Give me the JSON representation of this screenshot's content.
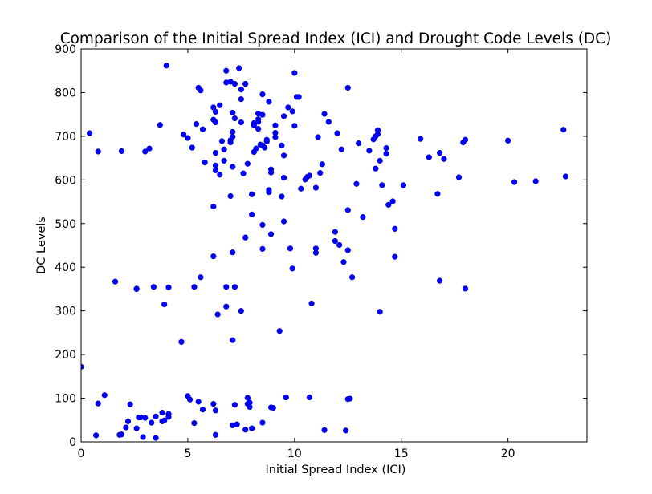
{
  "chart_data": {
    "type": "scatter",
    "title": "Comparison of the Initial Spread Index (ICI) and Drought Code Levels (DC)",
    "xlabel": "Initial Spread Index (ICI)",
    "ylabel": "DC Levels",
    "xlim": [
      0,
      23.7
    ],
    "ylim": [
      0,
      900
    ],
    "xticks": [
      0,
      5,
      10,
      15,
      20
    ],
    "yticks": [
      0,
      100,
      200,
      300,
      400,
      500,
      600,
      700,
      800,
      900
    ],
    "grid": false,
    "marker_color": "#0000ff",
    "points": [
      [
        0.0,
        172
      ],
      [
        0.4,
        707
      ],
      [
        0.7,
        15
      ],
      [
        0.8,
        88
      ],
      [
        0.8,
        665
      ],
      [
        1.1,
        107
      ],
      [
        1.6,
        367
      ],
      [
        1.8,
        16
      ],
      [
        1.9,
        17
      ],
      [
        1.9,
        666
      ],
      [
        2.1,
        33
      ],
      [
        2.2,
        47
      ],
      [
        2.3,
        86
      ],
      [
        2.6,
        31
      ],
      [
        2.6,
        351
      ],
      [
        2.6,
        350
      ],
      [
        2.7,
        56
      ],
      [
        2.8,
        56
      ],
      [
        2.9,
        11
      ],
      [
        3.0,
        55
      ],
      [
        3.0,
        665
      ],
      [
        3.2,
        672
      ],
      [
        3.3,
        44
      ],
      [
        3.4,
        355
      ],
      [
        3.5,
        9
      ],
      [
        3.5,
        58
      ],
      [
        3.7,
        726
      ],
      [
        3.8,
        47
      ],
      [
        3.8,
        67
      ],
      [
        3.9,
        315
      ],
      [
        3.9,
        49
      ],
      [
        4.0,
        862
      ],
      [
        4.1,
        64
      ],
      [
        4.1,
        57
      ],
      [
        4.1,
        354
      ],
      [
        4.7,
        229
      ],
      [
        4.8,
        704
      ],
      [
        5.0,
        105
      ],
      [
        5.0,
        696
      ],
      [
        5.1,
        97
      ],
      [
        5.2,
        674
      ],
      [
        5.3,
        43
      ],
      [
        5.3,
        355
      ],
      [
        5.4,
        728
      ],
      [
        5.5,
        92
      ],
      [
        5.5,
        811
      ],
      [
        5.6,
        805
      ],
      [
        5.6,
        377
      ],
      [
        5.7,
        716
      ],
      [
        5.7,
        74
      ],
      [
        5.8,
        640
      ],
      [
        6.2,
        87
      ],
      [
        6.2,
        425
      ],
      [
        6.2,
        539
      ],
      [
        6.2,
        766
      ],
      [
        6.2,
        738
      ],
      [
        6.3,
        16
      ],
      [
        6.3,
        72
      ],
      [
        6.3,
        662
      ],
      [
        6.3,
        633
      ],
      [
        6.3,
        622
      ],
      [
        6.3,
        756
      ],
      [
        6.3,
        732
      ],
      [
        6.4,
        292
      ],
      [
        6.5,
        771
      ],
      [
        6.5,
        612
      ],
      [
        6.6,
        689
      ],
      [
        6.7,
        670
      ],
      [
        6.7,
        644
      ],
      [
        6.8,
        310
      ],
      [
        6.8,
        355
      ],
      [
        6.8,
        823
      ],
      [
        6.8,
        850
      ],
      [
        7.0,
        691
      ],
      [
        7.0,
        686
      ],
      [
        7.0,
        563
      ],
      [
        7.0,
        825
      ],
      [
        7.1,
        710
      ],
      [
        7.1,
        699
      ],
      [
        7.1,
        754
      ],
      [
        7.1,
        630
      ],
      [
        7.1,
        434
      ],
      [
        7.1,
        233
      ],
      [
        7.1,
        38
      ],
      [
        7.2,
        85
      ],
      [
        7.2,
        355
      ],
      [
        7.2,
        741
      ],
      [
        7.2,
        820
      ],
      [
        7.3,
        40
      ],
      [
        7.3,
        40
      ],
      [
        7.4,
        856
      ],
      [
        7.5,
        807
      ],
      [
        7.5,
        785
      ],
      [
        7.5,
        732
      ],
      [
        7.5,
        300
      ],
      [
        7.6,
        615
      ],
      [
        7.7,
        28
      ],
      [
        7.7,
        820
      ],
      [
        7.7,
        468
      ],
      [
        7.8,
        637
      ],
      [
        7.8,
        87
      ],
      [
        7.8,
        101
      ],
      [
        7.9,
        90
      ],
      [
        7.9,
        80
      ],
      [
        8.0,
        567
      ],
      [
        8.0,
        521
      ],
      [
        8.0,
        31
      ],
      [
        8.1,
        730
      ],
      [
        8.1,
        725
      ],
      [
        8.1,
        664
      ],
      [
        8.2,
        672
      ],
      [
        8.3,
        733
      ],
      [
        8.3,
        739
      ],
      [
        8.3,
        752
      ],
      [
        8.3,
        717
      ],
      [
        8.4,
        681
      ],
      [
        8.5,
        796
      ],
      [
        8.5,
        679
      ],
      [
        8.5,
        749
      ],
      [
        8.5,
        497
      ],
      [
        8.5,
        44
      ],
      [
        8.5,
        442
      ],
      [
        8.6,
        674
      ],
      [
        8.7,
        688
      ],
      [
        8.7,
        692
      ],
      [
        8.8,
        779
      ],
      [
        8.8,
        577
      ],
      [
        8.8,
        572
      ],
      [
        8.9,
        624
      ],
      [
        8.9,
        617
      ],
      [
        8.9,
        476
      ],
      [
        8.9,
        79
      ],
      [
        9.0,
        78
      ],
      [
        9.1,
        708
      ],
      [
        9.1,
        725
      ],
      [
        9.1,
        698
      ],
      [
        9.3,
        254
      ],
      [
        9.4,
        679
      ],
      [
        9.4,
        562
      ],
      [
        9.5,
        605
      ],
      [
        9.5,
        656
      ],
      [
        9.5,
        746
      ],
      [
        9.5,
        505
      ],
      [
        9.6,
        102
      ],
      [
        9.6,
        102
      ],
      [
        9.7,
        766
      ],
      [
        9.8,
        443
      ],
      [
        9.9,
        397
      ],
      [
        9.9,
        757
      ],
      [
        10.0,
        845
      ],
      [
        10.0,
        724
      ],
      [
        10.1,
        790
      ],
      [
        10.2,
        790
      ],
      [
        10.3,
        580
      ],
      [
        10.5,
        601
      ],
      [
        10.6,
        607
      ],
      [
        10.7,
        610
      ],
      [
        10.7,
        102
      ],
      [
        10.8,
        317
      ],
      [
        11.0,
        582
      ],
      [
        11.0,
        443
      ],
      [
        11.0,
        433
      ],
      [
        11.1,
        698
      ],
      [
        11.2,
        616
      ],
      [
        11.3,
        636
      ],
      [
        11.4,
        751
      ],
      [
        11.4,
        27
      ],
      [
        11.6,
        733
      ],
      [
        11.9,
        460
      ],
      [
        11.9,
        481
      ],
      [
        12.0,
        707
      ],
      [
        12.1,
        451
      ],
      [
        12.2,
        670
      ],
      [
        12.3,
        412
      ],
      [
        12.4,
        26
      ],
      [
        12.5,
        439
      ],
      [
        12.5,
        531
      ],
      [
        12.5,
        811
      ],
      [
        12.5,
        98
      ],
      [
        12.6,
        99
      ],
      [
        12.7,
        377
      ],
      [
        12.9,
        591
      ],
      [
        13.0,
        684
      ],
      [
        13.2,
        515
      ],
      [
        13.5,
        667
      ],
      [
        13.7,
        693
      ],
      [
        13.8,
        700
      ],
      [
        13.8,
        626
      ],
      [
        13.9,
        714
      ],
      [
        13.9,
        705
      ],
      [
        14.0,
        644
      ],
      [
        14.0,
        298
      ],
      [
        14.1,
        588
      ],
      [
        14.3,
        660
      ],
      [
        14.3,
        673
      ],
      [
        14.4,
        543
      ],
      [
        14.6,
        551
      ],
      [
        14.7,
        488
      ],
      [
        14.7,
        424
      ],
      [
        15.1,
        588
      ],
      [
        15.9,
        694
      ],
      [
        16.3,
        652
      ],
      [
        16.7,
        568
      ],
      [
        16.8,
        662
      ],
      [
        16.8,
        369
      ],
      [
        17.0,
        648
      ],
      [
        17.7,
        606
      ],
      [
        17.9,
        686
      ],
      [
        18.0,
        692
      ],
      [
        18.0,
        351
      ],
      [
        20.0,
        690
      ],
      [
        20.3,
        595
      ],
      [
        21.3,
        597
      ],
      [
        22.6,
        715
      ],
      [
        22.7,
        608
      ]
    ]
  }
}
